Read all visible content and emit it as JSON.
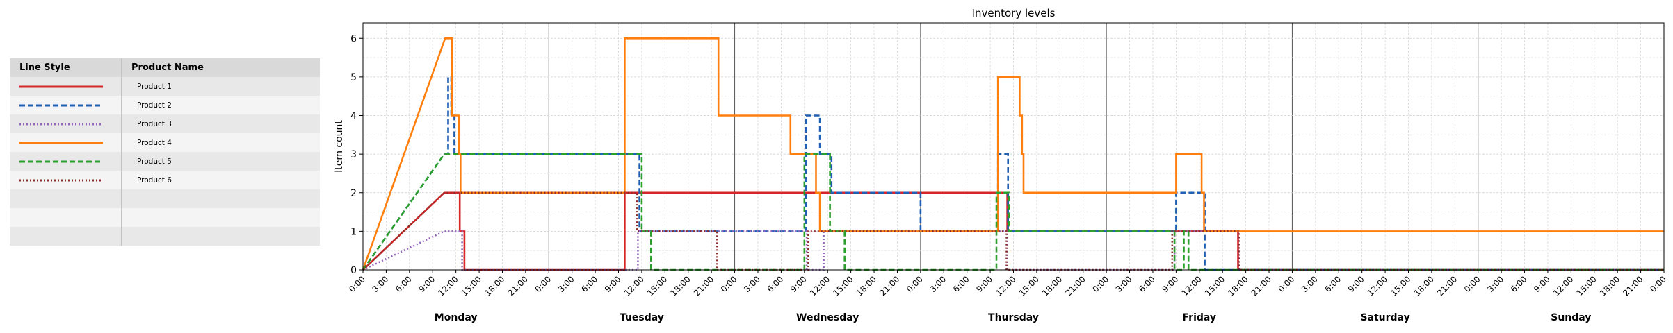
{
  "legend": {
    "headers": {
      "style": "Line Style",
      "name": "Product Name"
    },
    "rows": [
      {
        "name": "Product 1",
        "color": "#d62728",
        "dash": "solid"
      },
      {
        "name": "Product 2",
        "color": "#1f5fb4",
        "dash": "dashed"
      },
      {
        "name": "Product 3",
        "color": "#9467bd",
        "dash": "dotted"
      },
      {
        "name": "Product 4",
        "color": "#ff7f0e",
        "dash": "solid"
      },
      {
        "name": "Product 5",
        "color": "#2ca02c",
        "dash": "dashed"
      },
      {
        "name": "Product 6",
        "color": "#8c2d2d",
        "dash": "dotted"
      }
    ],
    "empty_rows": 3
  },
  "chart_data": {
    "type": "line",
    "step": true,
    "title": "Inventory levels",
    "xlabel": "",
    "ylabel": "Item count",
    "ylim": [
      0,
      6.4
    ],
    "xlim_hours": [
      0,
      168
    ],
    "yticks": [
      0,
      1,
      2,
      3,
      4,
      5,
      6
    ],
    "xtick_labels": [
      "0:00",
      "3:00",
      "6:00",
      "9:00",
      "12:00",
      "15:00",
      "18:00",
      "21:00"
    ],
    "days": [
      "Monday",
      "Tuesday",
      "Wednesday",
      "Thursday",
      "Friday",
      "Saturday",
      "Sunday"
    ],
    "grid": true,
    "series": [
      {
        "name": "Product 1",
        "color": "#d62728",
        "dash": "solid",
        "points": [
          [
            0,
            0
          ],
          [
            10.5,
            2
          ],
          [
            12.5,
            2
          ],
          [
            12.5,
            1
          ],
          [
            13.1,
            1
          ],
          [
            13.1,
            0
          ],
          [
            33.8,
            0
          ],
          [
            33.8,
            2
          ],
          [
            83.2,
            2
          ],
          [
            83.2,
            1
          ],
          [
            113,
            1
          ],
          [
            113,
            0
          ],
          [
            168,
            0
          ]
        ]
      },
      {
        "name": "Product 2",
        "color": "#1f5fb4",
        "dash": "dashed",
        "points": [
          [
            0,
            0
          ],
          [
            10.5,
            3
          ],
          [
            11,
            3
          ],
          [
            11,
            5
          ],
          [
            11.4,
            5
          ],
          [
            11.4,
            4
          ],
          [
            11.8,
            4
          ],
          [
            11.8,
            3
          ],
          [
            35.7,
            3
          ],
          [
            35.7,
            1
          ],
          [
            57.2,
            1
          ],
          [
            57.2,
            4
          ],
          [
            59,
            4
          ],
          [
            59,
            3
          ],
          [
            60.5,
            3
          ],
          [
            60.5,
            2
          ],
          [
            72,
            2
          ],
          [
            72,
            1
          ],
          [
            82,
            1
          ],
          [
            82,
            3
          ],
          [
            83.3,
            3
          ],
          [
            83.3,
            1
          ],
          [
            105,
            1
          ],
          [
            105,
            2
          ],
          [
            108.7,
            2
          ],
          [
            108.7,
            0
          ],
          [
            168,
            0
          ]
        ]
      },
      {
        "name": "Product 3",
        "color": "#9467bd",
        "dash": "dotted",
        "points": [
          [
            0,
            0
          ],
          [
            10.5,
            1
          ],
          [
            12.8,
            1
          ],
          [
            12.8,
            0
          ],
          [
            35.5,
            0
          ],
          [
            35.5,
            1
          ],
          [
            57.3,
            1
          ],
          [
            57.3,
            0
          ],
          [
            59.5,
            0
          ],
          [
            59.5,
            1
          ],
          [
            83.2,
            1
          ],
          [
            83.2,
            0
          ],
          [
            104.8,
            0
          ],
          [
            104.8,
            1
          ],
          [
            113.2,
            1
          ],
          [
            113.2,
            0
          ],
          [
            168,
            0
          ]
        ]
      },
      {
        "name": "Product 4",
        "color": "#ff7f0e",
        "dash": "solid",
        "points": [
          [
            0,
            0
          ],
          [
            10.6,
            6
          ],
          [
            11.5,
            6
          ],
          [
            11.5,
            4
          ],
          [
            12.4,
            4
          ],
          [
            12.4,
            3
          ],
          [
            12.6,
            3
          ],
          [
            12.6,
            2
          ],
          [
            33.8,
            2
          ],
          [
            33.8,
            6
          ],
          [
            45.9,
            6
          ],
          [
            45.9,
            4
          ],
          [
            55.2,
            4
          ],
          [
            55.2,
            3
          ],
          [
            58.5,
            3
          ],
          [
            58.5,
            2
          ],
          [
            59,
            2
          ],
          [
            59,
            1
          ],
          [
            82,
            1
          ],
          [
            82,
            5
          ],
          [
            84.8,
            5
          ],
          [
            84.8,
            4
          ],
          [
            85.1,
            4
          ],
          [
            85.1,
            3
          ],
          [
            85.3,
            3
          ],
          [
            85.3,
            2
          ],
          [
            105,
            2
          ],
          [
            105,
            3
          ],
          [
            108.3,
            3
          ],
          [
            108.3,
            2
          ],
          [
            108.6,
            2
          ],
          [
            108.6,
            1
          ],
          [
            168,
            1
          ]
        ]
      },
      {
        "name": "Product 5",
        "color": "#2ca02c",
        "dash": "dashed",
        "points": [
          [
            0,
            0
          ],
          [
            10.5,
            3
          ],
          [
            36,
            3
          ],
          [
            36,
            1
          ],
          [
            37.2,
            1
          ],
          [
            37.2,
            0
          ],
          [
            57,
            0
          ],
          [
            57,
            3
          ],
          [
            60.3,
            3
          ],
          [
            60.3,
            1
          ],
          [
            62.2,
            1
          ],
          [
            62.2,
            0
          ],
          [
            81.8,
            0
          ],
          [
            81.8,
            2
          ],
          [
            83.4,
            2
          ],
          [
            83.4,
            1
          ],
          [
            104.8,
            1
          ],
          [
            104.8,
            0
          ],
          [
            106,
            0
          ],
          [
            106,
            1
          ],
          [
            106.6,
            1
          ],
          [
            106.6,
            0
          ],
          [
            168,
            0
          ]
        ]
      },
      {
        "name": "Product 6",
        "color": "#8c2d2d",
        "dash": "dotted",
        "points": [
          [
            0,
            0
          ],
          [
            10.5,
            2
          ],
          [
            35.4,
            2
          ],
          [
            35.4,
            1
          ],
          [
            45.7,
            1
          ],
          [
            45.7,
            0
          ],
          [
            57.5,
            0
          ],
          [
            57.5,
            1
          ],
          [
            83.1,
            1
          ],
          [
            83.1,
            0
          ],
          [
            104.5,
            0
          ],
          [
            104.5,
            1
          ],
          [
            113.1,
            1
          ],
          [
            113.1,
            0
          ],
          [
            168,
            0
          ]
        ]
      }
    ]
  }
}
